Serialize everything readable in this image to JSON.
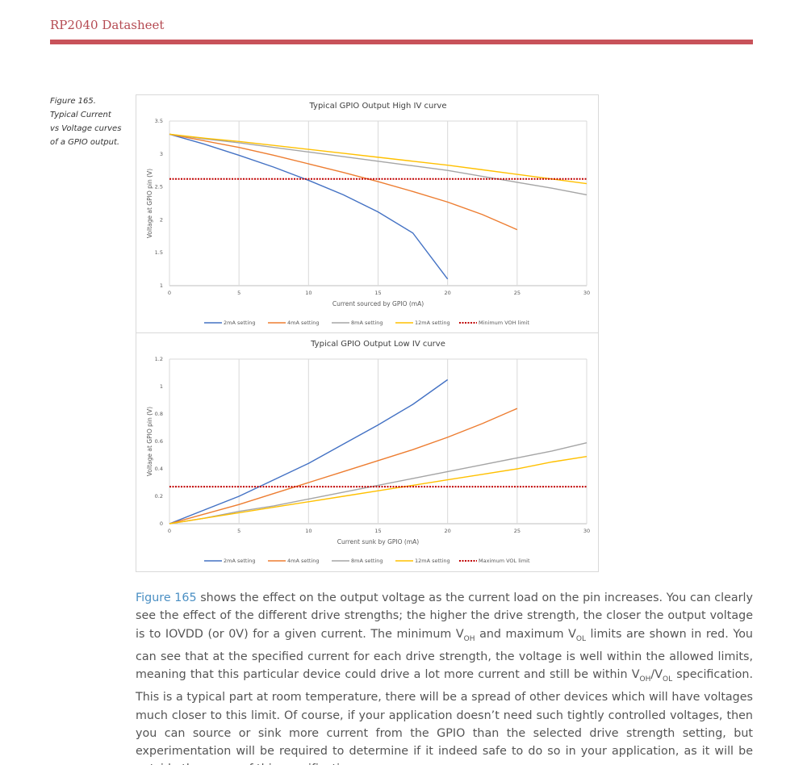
{
  "header": {
    "title": "RP2040 Datasheet"
  },
  "caption": "Figure 165. Typical Current vs Voltage curves of a GPIO output.",
  "chart_data": [
    {
      "type": "line",
      "title": "Typical GPIO Output High IV curve",
      "x_label": "Current sourced by GPIO (mA)",
      "y_label": "Voltage at GPIO pin (V)",
      "x": [
        0,
        2.5,
        5,
        7.5,
        10,
        12.5,
        15,
        17.5,
        20,
        22.5,
        25,
        27.5,
        30
      ],
      "xlim": [
        0,
        30
      ],
      "xticks": [
        0,
        5,
        10,
        15,
        20,
        25,
        30
      ],
      "ylim": [
        1,
        3.5
      ],
      "yticks": [
        1,
        1.5,
        2,
        2.5,
        3,
        3.5
      ],
      "grid": "x",
      "series": [
        {
          "name": "2mA setting",
          "color": "#4472c4",
          "values": [
            3.3,
            3.15,
            2.98,
            2.8,
            2.6,
            2.38,
            2.12,
            1.8,
            1.1,
            null,
            null,
            null,
            null
          ]
        },
        {
          "name": "4mA setting",
          "color": "#ed7d31",
          "values": [
            3.3,
            3.2,
            3.1,
            2.98,
            2.85,
            2.72,
            2.58,
            2.43,
            2.27,
            2.08,
            1.85,
            null,
            null
          ]
        },
        {
          "name": "8mA setting",
          "color": "#a5a5a5",
          "values": [
            3.3,
            3.23,
            3.17,
            3.1,
            3.03,
            2.96,
            2.89,
            2.82,
            2.75,
            2.66,
            2.57,
            2.48,
            2.38
          ]
        },
        {
          "name": "12mA setting",
          "color": "#ffc000",
          "values": [
            3.3,
            3.24,
            3.19,
            3.13,
            3.07,
            3.01,
            2.95,
            2.89,
            2.83,
            2.76,
            2.69,
            2.62,
            2.55
          ]
        },
        {
          "name": "Minimum VOH limit",
          "color": "#c00000",
          "style": "dotted",
          "values": [
            2.62,
            2.62,
            2.62,
            2.62,
            2.62,
            2.62,
            2.62,
            2.62,
            2.62,
            2.62,
            2.62,
            2.62,
            2.62
          ]
        }
      ]
    },
    {
      "type": "line",
      "title": "Typical GPIO Output Low IV curve",
      "x_label": "Current sunk by GPIO (mA)",
      "y_label": "Voltage at GPIO pin (V)",
      "x": [
        0,
        2.5,
        5,
        7.5,
        10,
        12.5,
        15,
        17.5,
        20,
        22.5,
        25,
        27.5,
        30
      ],
      "xlim": [
        0,
        30
      ],
      "xticks": [
        0,
        5,
        10,
        15,
        20,
        25,
        30
      ],
      "ylim": [
        0,
        1.2
      ],
      "yticks": [
        0,
        0.2,
        0.4,
        0.6,
        0.8,
        1,
        1.2
      ],
      "grid": "x",
      "series": [
        {
          "name": "2mA setting",
          "color": "#4472c4",
          "values": [
            0,
            0.1,
            0.2,
            0.32,
            0.44,
            0.58,
            0.72,
            0.87,
            1.05,
            null,
            null,
            null,
            null
          ]
        },
        {
          "name": "4mA setting",
          "color": "#ed7d31",
          "values": [
            0,
            0.07,
            0.14,
            0.22,
            0.3,
            0.38,
            0.46,
            0.54,
            0.63,
            0.73,
            0.84,
            null,
            null
          ]
        },
        {
          "name": "8mA setting",
          "color": "#a5a5a5",
          "values": [
            0,
            0.04,
            0.09,
            0.13,
            0.18,
            0.23,
            0.28,
            0.33,
            0.38,
            0.43,
            0.48,
            0.53,
            0.59
          ]
        },
        {
          "name": "12mA setting",
          "color": "#ffc000",
          "values": [
            0,
            0.04,
            0.08,
            0.12,
            0.16,
            0.2,
            0.24,
            0.28,
            0.32,
            0.36,
            0.4,
            0.45,
            0.49
          ]
        },
        {
          "name": "Maximum VOL limit",
          "color": "#c00000",
          "style": "dotted",
          "values": [
            0.27,
            0.27,
            0.27,
            0.27,
            0.27,
            0.27,
            0.27,
            0.27,
            0.27,
            0.27,
            0.27,
            0.27,
            0.27
          ]
        }
      ]
    }
  ],
  "paragraph": [
    "Figure 165",
    " shows the effect on the output voltage as the current load on the pin increases. You can clearly see the effect of the different drive strengths; the higher the drive strength, the closer the output voltage is to IOVDD (or 0V) for a given current. The minimum V",
    "OH",
    " and maximum V",
    "OL",
    " limits are shown in red. You can see that at the specified current for each drive strength, the voltage is well within the allowed limits, meaning that this particular device could drive a lot more current and still be within V",
    "OH",
    "/V",
    "OL",
    " specification. This is a typical part at room temperature, there will be a spread of other devices which will have voltages much closer to this limit. Of course, if your application doesn’t need such tightly controlled voltages, then you can source or sink more current from the GPIO than the selected drive strength setting, but experimentation will be required to determine if it indeed safe to do so in your application, as it will be outside the scope of this specification."
  ]
}
